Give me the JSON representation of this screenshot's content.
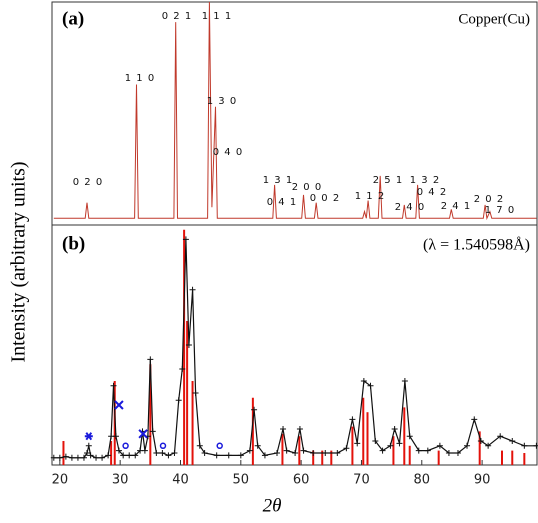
{
  "chart_data": [
    {
      "type": "line",
      "panel_label": "(a)",
      "title": "Copper(Cu)",
      "xlim": [
        18.7,
        99.1
      ],
      "ylim": [
        0,
        100
      ],
      "series": [
        {
          "color": "#c0392b",
          "x": [
            19,
            24.2,
            24.5,
            24.8,
            32.4,
            32.7,
            33.0,
            38.9,
            39.2,
            39.5,
            44.5,
            44.8,
            45.2,
            45.8,
            46.1,
            55.3,
            55.6,
            55.9,
            60.1,
            60.4,
            60.7,
            62.2,
            62.5,
            62.8,
            70.2,
            70.5,
            70.8,
            71.1,
            71.4,
            72.8,
            73.1,
            73.4,
            76.8,
            77.1,
            77.4,
            79.0,
            79.3,
            79.6,
            84.6,
            84.9,
            85.2,
            90.2,
            90.5,
            90.8,
            91.3,
            91.6,
            99
          ],
          "values": [
            3,
            3,
            10,
            3,
            3,
            63,
            3,
            3,
            91,
            3,
            3,
            100,
            8,
            53,
            3,
            3,
            18,
            3,
            3,
            13.5,
            3,
            3,
            10,
            3,
            3,
            6,
            3,
            11,
            3,
            3,
            22,
            3,
            3,
            9,
            3,
            3,
            18,
            3,
            3,
            7,
            3,
            3,
            9,
            3,
            6,
            3,
            3
          ]
        }
      ],
      "peak_labels": [
        "0 2 0",
        "1 1 0",
        "0 2 1",
        "1 1 1",
        "1 3 0",
        "0 4 0",
        "1 3 1",
        "0 4 1",
        "2 0 0",
        "0 0 2",
        "1 1 2",
        "2 5 1",
        "2 4 0",
        "1 3 2",
        "0 4 2",
        "2 4 1",
        "2 0 2",
        "1 7 0"
      ]
    },
    {
      "type": "line",
      "panel_label": "(b)",
      "annotation": "(λ = 1.540598Å)",
      "xlabel": "2θ",
      "ylabel": "Intensity (arbitrary units)",
      "xlim": [
        18.7,
        99.1
      ],
      "ylim": [
        0,
        100
      ],
      "xticks": [
        20,
        30,
        40,
        50,
        60,
        70,
        80,
        90
      ],
      "series": [
        {
          "style": "sticks",
          "color": "#e3120b",
          "x": [
            20.6,
            28.5,
            29.1,
            35.0,
            40.6,
            41.1,
            42.0,
            52.0,
            56.9,
            59.7,
            62.0,
            63.5,
            65.0,
            68.5,
            70.3,
            71.0,
            75.3,
            77.1,
            78.0,
            82.8,
            89.6,
            93.3,
            95.0,
            97.0
          ],
          "values": [
            10,
            10,
            35,
            42,
            98,
            60,
            35,
            28,
            13,
            12,
            6,
            6,
            6,
            16,
            28,
            22,
            12,
            24,
            8,
            6,
            14,
            6,
            6,
            5
          ]
        },
        {
          "style": "line-markers",
          "marker": "plus",
          "color": "#111111",
          "x": [
            19,
            20,
            21,
            22,
            23,
            24,
            24.5,
            24.8,
            25.1,
            26,
            27,
            28,
            28.5,
            28.9,
            29.3,
            29.8,
            30.5,
            31.5,
            32.5,
            33.3,
            33.7,
            34.1,
            34.6,
            35.0,
            35.4,
            36,
            37,
            38,
            39,
            39.7,
            40.3,
            40.9,
            41.4,
            42.0,
            42.5,
            43.2,
            44,
            46,
            48,
            50,
            51.5,
            52.2,
            52.8,
            54,
            56,
            57,
            57.6,
            59,
            59.8,
            60.4,
            62,
            64,
            66,
            67.5,
            68.5,
            69.3,
            70.4,
            71.5,
            72.3,
            73.5,
            74.8,
            75.5,
            76.3,
            77.2,
            78,
            79.5,
            81,
            83,
            84.5,
            86,
            87.5,
            88.7,
            89.8,
            91,
            93,
            95,
            97,
            99
          ],
          "values": [
            3,
            3,
            3.5,
            3,
            3,
            3,
            5,
            8,
            4,
            3,
            3,
            4,
            12,
            33,
            12,
            6,
            4,
            4,
            4,
            6,
            14,
            6,
            12,
            44,
            14,
            5,
            5,
            4,
            5,
            27,
            40,
            94,
            50,
            73,
            30,
            8,
            5,
            4,
            4,
            4,
            6,
            23,
            8,
            4,
            5,
            15,
            6,
            5,
            15,
            6,
            5,
            5,
            5,
            7,
            19,
            9,
            35,
            33,
            10,
            6,
            8,
            15,
            9,
            35,
            12,
            6,
            6,
            8,
            5,
            5,
            8,
            19,
            10,
            8,
            12,
            10,
            8,
            8
          ]
        },
        {
          "style": "markers",
          "marker": "star",
          "color": "#1a1adb",
          "x": [
            24.8
          ],
          "values": [
            12
          ]
        },
        {
          "style": "markers",
          "marker": "cross",
          "color": "#1a1adb",
          "x": [
            29.8,
            33.8
          ],
          "values": [
            25,
            13
          ]
        },
        {
          "style": "markers",
          "marker": "circle",
          "color": "#1a1adb",
          "x": [
            30.9,
            37.1,
            46.5
          ],
          "values": [
            8,
            8,
            8
          ]
        }
      ]
    }
  ]
}
